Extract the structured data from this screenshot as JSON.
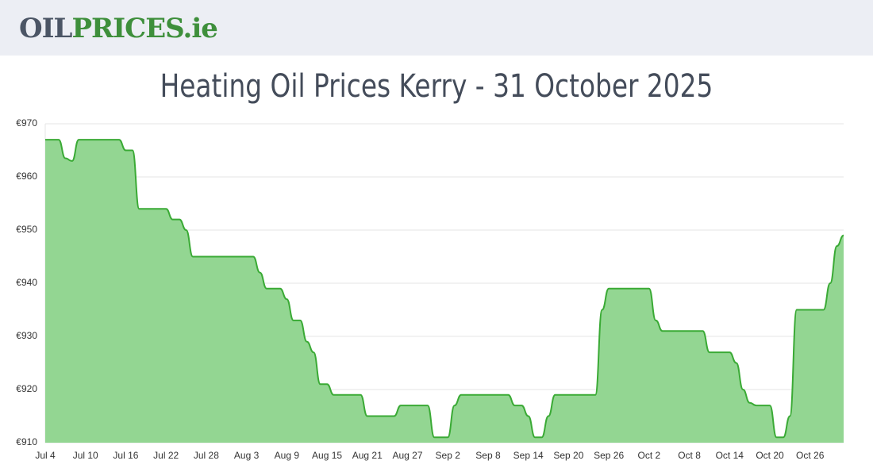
{
  "header": {
    "logo_dark": "OIL",
    "logo_green": "PRICES.ie"
  },
  "chart_data": {
    "type": "area",
    "title": "Heating Oil Prices Kerry - 31 October 2025",
    "color": "#3aaa35",
    "fill": "#93d692",
    "grid": true,
    "ylim": [
      910,
      970
    ],
    "yticks": [
      {
        "value": 910,
        "label": "€910"
      },
      {
        "value": 920,
        "label": "€920"
      },
      {
        "value": 930,
        "label": "€930"
      },
      {
        "value": 940,
        "label": "€940"
      },
      {
        "value": 950,
        "label": "€950"
      },
      {
        "value": 960,
        "label": "€960"
      },
      {
        "value": 970,
        "label": "€970"
      }
    ],
    "categories": [
      "Jul 4",
      null,
      null,
      null,
      null,
      null,
      "Jul 10",
      null,
      null,
      null,
      null,
      null,
      "Jul 16",
      null,
      null,
      null,
      null,
      null,
      "Jul 22",
      null,
      null,
      null,
      null,
      null,
      "Jul 28",
      null,
      null,
      null,
      null,
      null,
      "Aug 3",
      null,
      null,
      null,
      null,
      null,
      "Aug 9",
      null,
      null,
      null,
      null,
      null,
      "Aug 15",
      null,
      null,
      null,
      null,
      null,
      "Aug 21",
      null,
      null,
      null,
      null,
      null,
      "Aug 27",
      null,
      null,
      null,
      null,
      null,
      "Sep 2",
      null,
      null,
      null,
      null,
      null,
      "Sep 8",
      null,
      null,
      null,
      null,
      null,
      "Sep 14",
      null,
      null,
      null,
      null,
      null,
      "Sep 20",
      null,
      null,
      null,
      null,
      null,
      "Sep 26",
      null,
      null,
      null,
      null,
      null,
      "Oct 2",
      null,
      null,
      null,
      null,
      null,
      "Oct 8",
      null,
      null,
      null,
      null,
      null,
      "Oct 14",
      null,
      null,
      null,
      null,
      null,
      "Oct 20",
      null,
      null,
      null,
      null,
      null,
      "Oct 26",
      null,
      null,
      null,
      null,
      null
    ],
    "values": [
      967,
      967,
      967,
      963.5,
      963,
      967,
      967,
      967,
      967,
      967,
      967,
      967,
      965,
      965,
      954,
      954,
      954,
      954,
      954,
      952,
      952,
      950,
      945,
      945,
      945,
      945,
      945,
      945,
      945,
      945,
      945,
      945,
      942,
      939,
      939,
      939,
      937,
      933,
      933,
      929,
      927,
      921,
      921,
      919,
      919,
      919,
      919,
      919,
      915,
      915,
      915,
      915,
      915,
      917,
      917,
      917,
      917,
      917,
      911,
      911,
      911,
      917,
      919,
      919,
      919,
      919,
      919,
      919,
      919,
      919,
      917,
      917,
      915,
      911,
      911,
      915,
      919,
      919,
      919,
      919,
      919,
      919,
      919,
      935,
      939,
      939,
      939,
      939,
      939,
      939,
      939,
      933,
      931,
      931,
      931,
      931,
      931,
      931,
      931,
      927,
      927,
      927,
      927,
      925,
      920,
      917.5,
      917,
      917,
      917,
      911,
      911,
      915,
      935,
      935,
      935,
      935,
      935,
      940,
      947,
      949
    ]
  }
}
